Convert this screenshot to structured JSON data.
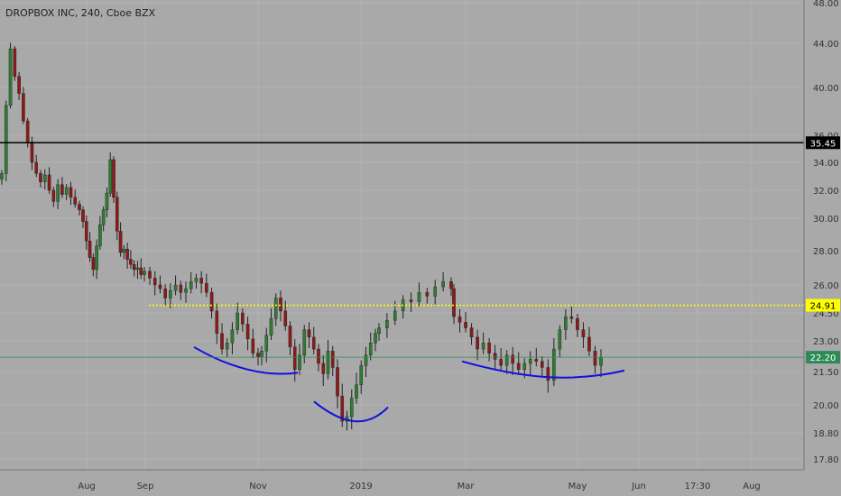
{
  "chart_data": {
    "type": "candlestick",
    "title": "DROPBOX INC, 240, Cboe BZX",
    "x_ticks": [
      "Aug",
      "Sep",
      "Nov",
      "2019",
      "Mar",
      "May",
      "Jun",
      "17:30",
      "Aug"
    ],
    "y_ticks": [
      "48.00",
      "44.00",
      "40.00",
      "36.00",
      "34.00",
      "32.00",
      "30.00",
      "28.00",
      "26.00",
      "24.50",
      "23.00",
      "21.50",
      "20.00",
      "18.80",
      "17.80"
    ],
    "y_tick_values": [
      48,
      44,
      40,
      36,
      34,
      32,
      30,
      28,
      26,
      24.5,
      23,
      21.5,
      20,
      18.8,
      17.8
    ],
    "horizontal_lines": [
      {
        "value": 35.45,
        "label": "35.45",
        "color": "#000000",
        "style": "solid"
      },
      {
        "value": 24.91,
        "label": "24.91",
        "color": "#ffff00",
        "style": "dotted"
      },
      {
        "value": 22.2,
        "label": "22.20",
        "color": "#2e8b57",
        "style": "solid-thin"
      }
    ],
    "last_price": 22.2,
    "pattern_arcs": [
      {
        "name": "left-shoulder",
        "points": [
          [
            0.0,
            22.7
          ],
          [
            0.35,
            21.65
          ],
          [
            0.7,
            21.25
          ],
          [
            1.0,
            21.45
          ]
        ]
      },
      {
        "name": "head",
        "points": [
          [
            0.0,
            20.15
          ],
          [
            0.45,
            19.0
          ],
          [
            0.75,
            19.1
          ],
          [
            1.0,
            19.9
          ]
        ]
      },
      {
        "name": "right-shoulder",
        "points": [
          [
            0.0,
            22.0
          ],
          [
            0.35,
            21.25
          ],
          [
            0.65,
            20.95
          ],
          [
            1.0,
            21.55
          ]
        ]
      }
    ],
    "series": [
      {
        "segment": "jun-jul-drop",
        "closes": [
          33.2,
          38.5,
          43.5,
          41.0,
          39.5,
          37.2,
          35.5,
          34.0,
          33.2,
          32.6,
          33.1,
          32.0,
          31.2,
          32.4,
          31.7,
          32.2,
          31.5,
          31.0,
          30.6
        ]
      },
      {
        "segment": "aug",
        "closes": [
          29.8,
          28.6,
          27.6,
          26.9,
          28.3,
          29.6,
          30.6,
          31.8,
          34.2,
          31.5,
          29.2,
          27.9,
          28.1,
          27.5,
          27.2,
          26.9,
          27.0,
          26.6,
          26.8
        ]
      },
      {
        "segment": "sep-oct",
        "closes": [
          26.4,
          26.0,
          25.8,
          25.3,
          25.7,
          26.0,
          25.6,
          25.8,
          26.2,
          26.4,
          26.1,
          25.6,
          24.6,
          23.4,
          22.6,
          22.9,
          23.6,
          24.5,
          23.9,
          23.1,
          22.4,
          22.2
        ]
      },
      {
        "segment": "nov-dec",
        "closes": [
          22.5,
          23.3,
          24.2,
          25.3,
          24.6,
          23.8,
          22.7,
          21.6,
          22.3,
          23.6,
          23.2,
          22.6,
          21.9,
          21.4,
          22.5,
          21.7,
          20.4,
          19.3,
          19.5,
          20.3,
          20.9,
          21.8,
          22.3,
          22.9,
          23.4
        ]
      },
      {
        "segment": "jan-feb",
        "closes": [
          23.7,
          24.1,
          24.6,
          25.2,
          25.1,
          25.6,
          25.4,
          25.9,
          26.2,
          25.8
        ]
      },
      {
        "segment": "mar-apr",
        "closes": [
          24.3,
          24.0,
          23.7,
          23.2,
          22.6,
          22.9,
          22.4,
          22.1,
          21.8,
          22.3,
          21.9,
          21.6,
          21.9,
          22.1,
          22.0,
          21.7,
          21.1,
          22.6,
          23.6,
          24.3,
          24.2,
          23.6,
          23.2,
          22.5,
          21.8,
          22.2
        ]
      }
    ]
  }
}
